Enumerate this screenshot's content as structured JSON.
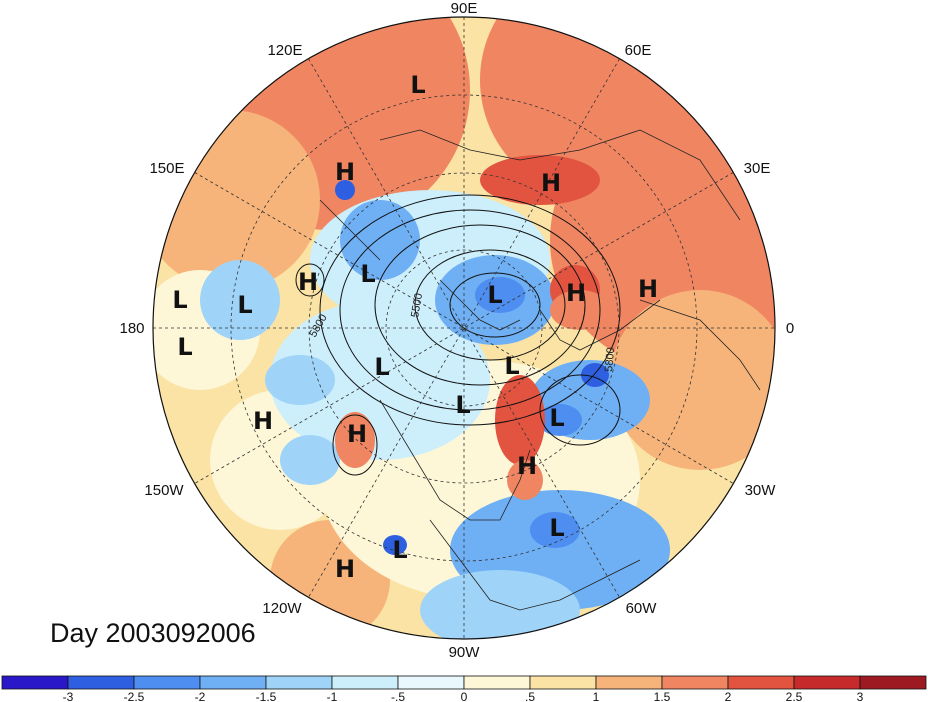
{
  "title": "Day 2003092006",
  "lon_labels": [
    "90E",
    "60E",
    "30E",
    "0",
    "30W",
    "60W",
    "90W",
    "120W",
    "150W",
    "180",
    "150E",
    "120E"
  ],
  "contour_labels": [
    "5800",
    "5500",
    "5800"
  ],
  "pressure_centers": [
    {
      "label": "L"
    },
    {
      "label": "H"
    },
    {
      "label": "H"
    },
    {
      "label": "L"
    },
    {
      "label": "H"
    },
    {
      "label": "L"
    },
    {
      "label": "L"
    },
    {
      "label": "H"
    },
    {
      "label": "H"
    },
    {
      "label": "L"
    },
    {
      "label": "L"
    },
    {
      "label": "L"
    },
    {
      "label": "L"
    },
    {
      "label": "H"
    },
    {
      "label": "H"
    },
    {
      "label": "L"
    },
    {
      "label": "H"
    },
    {
      "label": "L"
    },
    {
      "label": "L"
    },
    {
      "label": "H"
    },
    {
      "label": "L"
    }
  ],
  "colorbar": {
    "labels": [
      "-3",
      "-2.5",
      "-2",
      "-1.5",
      "-1",
      "-.5",
      "0",
      ".5",
      "1",
      "1.5",
      "2",
      "2.5",
      "3"
    ],
    "colors": [
      "#2a18c8",
      "#2e5fe0",
      "#4d8ef0",
      "#6fb0f5",
      "#9fd4f8",
      "#cdeefb",
      "#e8f8fd",
      "#fdf7d8",
      "#fae3a4",
      "#f6b47a",
      "#f08562",
      "#e35440",
      "#c62a2a",
      "#9e1a22"
    ]
  }
}
